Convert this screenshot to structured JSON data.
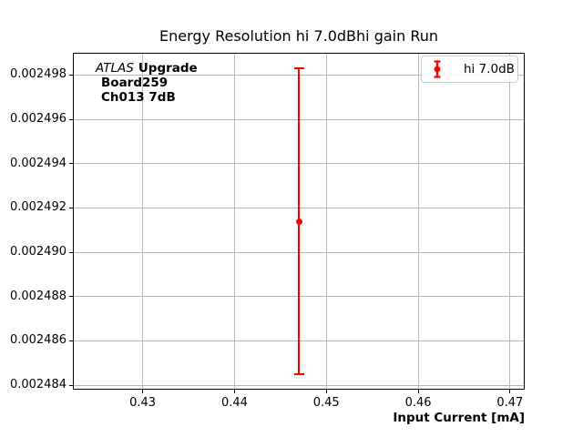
{
  "title": "Energy Resolution hi 7.0dBhi gain Run",
  "xlabel": "Input Current [mA]",
  "annotation": {
    "atlas": "ATLAS",
    "upgrade": "Upgrade",
    "line2": "Board259",
    "line3": "Ch013 7dB"
  },
  "legend": {
    "label": "hi 7.0dB",
    "marker_color": "#ff0000"
  },
  "colors": {
    "series": "#ff0000",
    "grid": "#b8b8b8",
    "spine": "#000000"
  },
  "chart_data": {
    "type": "scatter",
    "title": "Energy Resolution hi 7.0dBhi gain Run",
    "xlabel": "Input Current [mA]",
    "ylabel": "",
    "grid": true,
    "legend_position": "upper right",
    "xlim": [
      0.4224,
      0.4716
    ],
    "ylim": [
      0.0024838,
      0.002499
    ],
    "xticks": [
      0.43,
      0.44,
      0.45,
      0.46,
      0.47
    ],
    "xtick_labels": [
      "0.43",
      "0.44",
      "0.45",
      "0.46",
      "0.47"
    ],
    "yticks": [
      0.002484,
      0.002486,
      0.002488,
      0.00249,
      0.002492,
      0.002494,
      0.002496,
      0.002498
    ],
    "ytick_labels": [
      "0.002484",
      "0.002486",
      "0.002488",
      "0.002490",
      "0.002492",
      "0.002494",
      "0.002496",
      "0.002498"
    ],
    "series": [
      {
        "name": "hi 7.0dB",
        "color": "#ff0000",
        "marker": "circle",
        "points": [
          {
            "x": 0.447,
            "y": 0.0024914,
            "yerr": 6.9e-06
          }
        ]
      }
    ]
  }
}
